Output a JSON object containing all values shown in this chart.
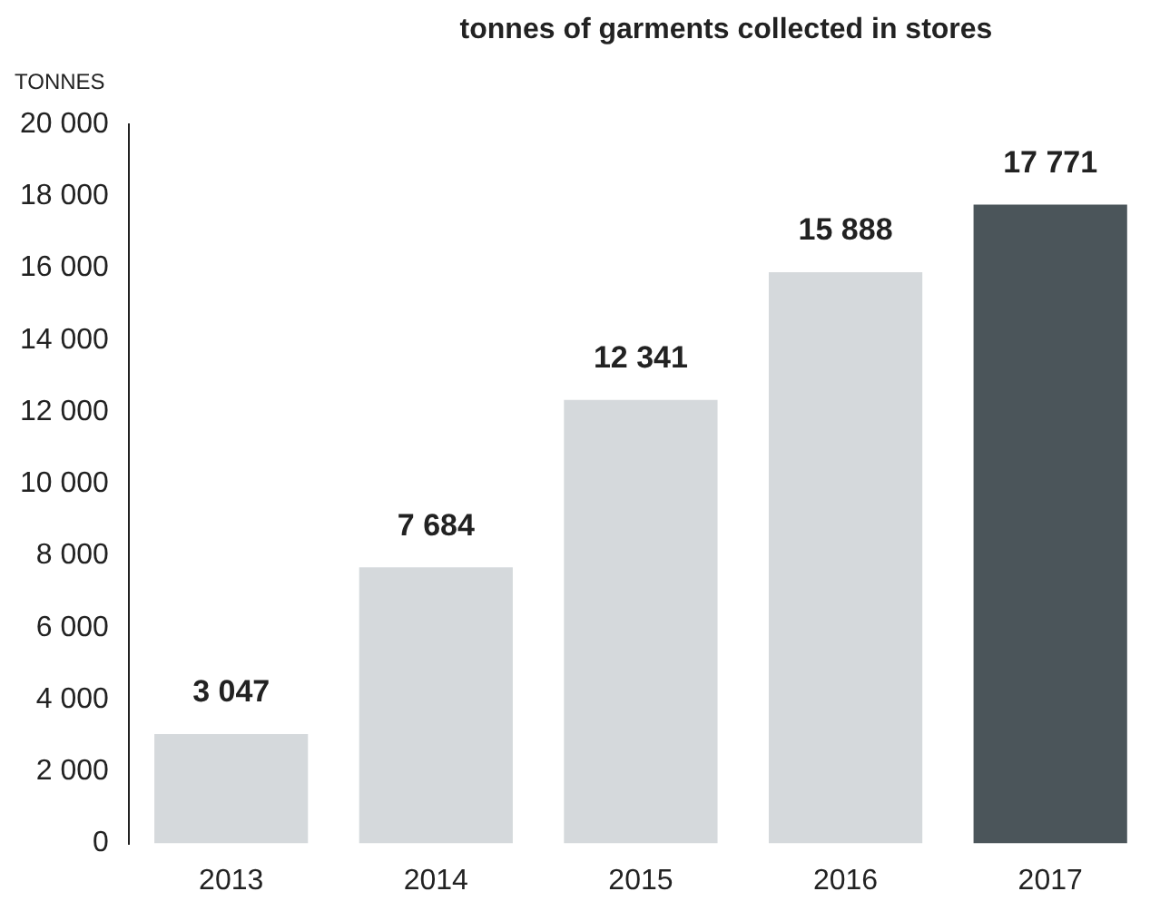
{
  "chart_data": {
    "type": "bar",
    "title": "tonnes of garments collected in stores",
    "ylabel": "TONNES",
    "categories": [
      "2013",
      "2014",
      "2015",
      "2016",
      "2017"
    ],
    "values": [
      3047,
      7684,
      12341,
      15888,
      17771
    ],
    "value_labels": [
      "3 047",
      "7 684",
      "12 341",
      "15 888",
      "17 771"
    ],
    "colors": [
      "#d5d9dc",
      "#d5d9dc",
      "#d5d9dc",
      "#d5d9dc",
      "#4b555a"
    ],
    "ylim": [
      0,
      20000
    ],
    "yticks": [
      0,
      {
        "value": 2000,
        "label": "2 000"
      },
      {
        "value": 4000,
        "label": "4 000"
      },
      {
        "value": 6000,
        "label": "6 000"
      },
      {
        "value": 8000,
        "label": "8 000"
      },
      {
        "value": 10000,
        "label": "10 000"
      },
      {
        "value": 12000,
        "label": "12 000"
      },
      {
        "value": 14000,
        "label": "14 000"
      },
      {
        "value": 16000,
        "label": "16 000"
      },
      {
        "value": 18000,
        "label": "18 000"
      },
      {
        "value": 20000,
        "label": "20 000"
      }
    ],
    "grid": false
  }
}
